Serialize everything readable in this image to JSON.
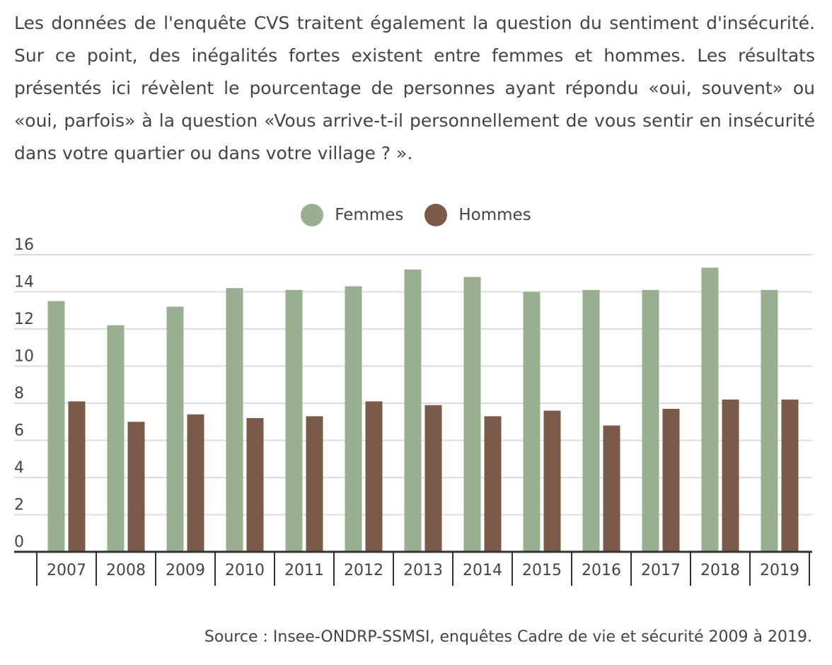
{
  "intro_text": "Les données de l'enquête CVS traitent également la question du sentiment d'insécurité. Sur ce point, des inégalités fortes existent entre femmes et hommes. Les résultats présentés ici révèlent le pourcentage de personnes ayant répondu «oui, souvent» ou «oui, parfois» à la question «Vous arrive-t-il personnellement de vous sentir en insécurité dans votre quartier ou dans votre village ? ».",
  "source": "Source : Insee-ONDRP-SSMSI, enquêtes Cadre de vie et sécurité 2009 à 2019.",
  "colors": {
    "femmes": "#9aae90",
    "hommes": "#7b5a4a",
    "grid": "#dddddd",
    "axis": "#333333"
  },
  "chart_data": {
    "type": "bar",
    "categories": [
      "2007",
      "2008",
      "2009",
      "2010",
      "2011",
      "2012",
      "2013",
      "2014",
      "2015",
      "2016",
      "2017",
      "2018",
      "2019"
    ],
    "series": [
      {
        "name": "Femmes",
        "values": [
          13.5,
          12.2,
          13.2,
          14.2,
          14.1,
          14.3,
          15.2,
          14.8,
          14.0,
          14.1,
          14.1,
          15.3,
          14.1
        ]
      },
      {
        "name": "Hommes",
        "values": [
          8.1,
          7.0,
          7.4,
          7.2,
          7.3,
          8.1,
          7.9,
          7.3,
          7.6,
          6.8,
          7.7,
          8.2,
          8.2
        ]
      }
    ],
    "ylim": [
      0,
      16
    ],
    "yticks": [
      0,
      2,
      4,
      6,
      8,
      10,
      12,
      14,
      16
    ],
    "grid": true,
    "legend": "top-center"
  }
}
